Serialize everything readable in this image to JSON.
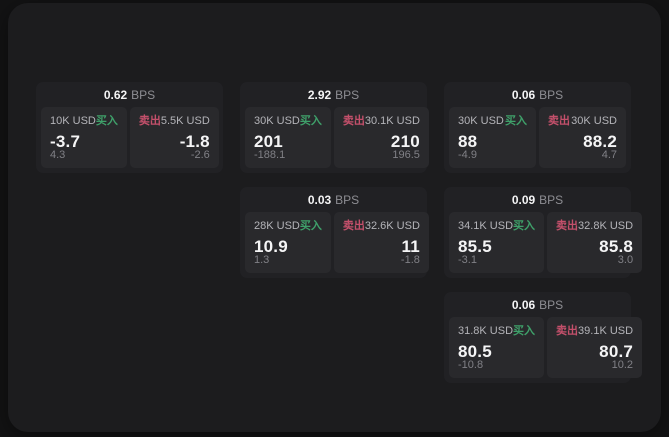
{
  "labels": {
    "bps": "BPS",
    "buy": "买入",
    "sell": "卖出"
  },
  "colors": {
    "page_bg": "#131314",
    "panel_bg": "#1c1c1e",
    "card_bg": "#212124",
    "tile_bg": "#29292c",
    "text_primary": "#f5f5f6",
    "text_secondary": "#b4b4b9",
    "text_muted": "#808086",
    "buy_green": "#3fa06a",
    "sell_red": "#c4506b"
  },
  "cards": [
    {
      "col": 1,
      "row": 1,
      "bps": "0.62",
      "buy": {
        "notional": "10K USD",
        "price": "-3.7",
        "delta": "4.3"
      },
      "sell": {
        "notional": "5.5K USD",
        "price": "-1.8",
        "delta": "-2.6"
      }
    },
    {
      "col": 2,
      "row": 1,
      "bps": "2.92",
      "buy": {
        "notional": "30K USD",
        "price": "201",
        "delta": "-188.1"
      },
      "sell": {
        "notional": "30.1K USD",
        "price": "210",
        "delta": "196.5"
      }
    },
    {
      "col": 3,
      "row": 1,
      "bps": "0.06",
      "buy": {
        "notional": "30K USD",
        "price": "88",
        "delta": "-4.9"
      },
      "sell": {
        "notional": "30K USD",
        "price": "88.2",
        "delta": "4.7"
      }
    },
    {
      "col": 2,
      "row": 2,
      "bps": "0.03",
      "buy": {
        "notional": "28K USD",
        "price": "10.9",
        "delta": "1.3"
      },
      "sell": {
        "notional": "32.6K USD",
        "price": "11",
        "delta": "-1.8"
      }
    },
    {
      "col": 3,
      "row": 2,
      "bps": "0.09",
      "buy": {
        "notional": "34.1K USD",
        "price": "85.5",
        "delta": "-3.1"
      },
      "sell": {
        "notional": "32.8K USD",
        "price": "85.8",
        "delta": "3.0"
      }
    },
    {
      "col": 3,
      "row": 3,
      "bps": "0.06",
      "buy": {
        "notional": "31.8K USD",
        "price": "80.5",
        "delta": "-10.8"
      },
      "sell": {
        "notional": "39.1K USD",
        "price": "80.7",
        "delta": "10.2"
      }
    }
  ]
}
